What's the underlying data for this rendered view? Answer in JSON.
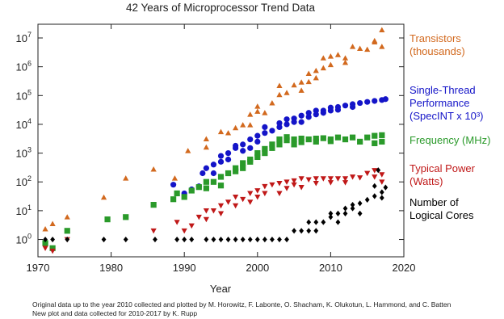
{
  "chart_data": {
    "type": "scatter",
    "title": "42 Years of Microprocessor Trend Data",
    "x_label": "Year",
    "notes": [
      "Original data up to the year 2010 collected and plotted by M. Horowitz, F. Labonte, O. Shacham, K. Olukotun, L. Hammond, and C. Batten",
      "New plot and data collected for 2010-2017 by K. Rupp"
    ],
    "xlim": [
      1970,
      2020
    ],
    "xticks": [
      1970,
      1980,
      1990,
      2000,
      2010,
      2020
    ],
    "ylim": [
      0.25,
      30000000
    ],
    "log_y": true,
    "yticks": [
      {
        "value": 1,
        "label": "10",
        "exponent": "0"
      },
      {
        "value": 10,
        "label": "10",
        "exponent": "1"
      },
      {
        "value": 100,
        "label": "10",
        "exponent": "2"
      },
      {
        "value": 1000,
        "label": "10",
        "exponent": "3"
      },
      {
        "value": 10000,
        "label": "10",
        "exponent": "4"
      },
      {
        "value": 100000,
        "label": "10",
        "exponent": "5"
      },
      {
        "value": 1000000,
        "label": "10",
        "exponent": "6"
      },
      {
        "value": 10000000,
        "label": "10",
        "exponent": "7"
      }
    ],
    "series": [
      {
        "name": "Transistors\n(thousands)",
        "color": "#d2691e",
        "marker": "triangle-up",
        "x": [
          1971,
          1972,
          1974,
          1979,
          1982,
          1985.8,
          1988.7,
          1990.5,
          1993,
          1993,
          1995,
          1996,
          1997,
          1998,
          1999,
          1999,
          2000,
          2000,
          2001,
          2002,
          2003,
          2003,
          2004,
          2005,
          2006,
          2006,
          2007,
          2007,
          2008,
          2008,
          2009,
          2009,
          2010,
          2010,
          2011,
          2012,
          2012,
          2013,
          2014,
          2015,
          2016,
          2016,
          2017,
          2017
        ],
        "values": [
          2.3,
          3.5,
          6,
          29,
          134,
          275,
          134,
          1200,
          3100,
          1600,
          5500,
          5000,
          7500,
          9500,
          22000,
          9500,
          42000,
          28000,
          25000,
          55000,
          220000,
          106000,
          125000,
          230000,
          290000,
          150000,
          580000,
          300000,
          730000,
          410000,
          900000,
          2000000,
          1170000,
          2300000,
          2600000,
          1400000,
          2000000,
          5000000,
          4300000,
          4000000,
          7200000,
          8000000,
          19000000,
          5000000
        ]
      },
      {
        "name": "Single-Thread\nPerformance\n(SpecINT x 10³)",
        "color": "#1414c8",
        "marker": "circle",
        "x": [
          1988.5,
          1990,
          1991,
          1992,
          1992.5,
          1993,
          1994,
          1994,
          1995,
          1995,
          1996,
          1996,
          1997,
          1997,
          1998,
          1998,
          1999,
          1999,
          2000,
          2000,
          2001,
          2001,
          2002,
          2003,
          2003,
          2004,
          2004,
          2005,
          2005,
          2006,
          2006,
          2007,
          2007,
          2008,
          2008,
          2009,
          2009,
          2010,
          2010,
          2011,
          2011,
          2012,
          2013,
          2013,
          2014,
          2015,
          2016,
          2017,
          2017.5
        ],
        "values": [
          80,
          40,
          55,
          70,
          200,
          300,
          400,
          200,
          500,
          800,
          1000,
          600,
          1500,
          1800,
          2000,
          1200,
          3000,
          1500,
          4000,
          2500,
          5000,
          8000,
          6000,
          8000,
          11000,
          10000,
          15000,
          12000,
          16000,
          20000,
          12000,
          25000,
          18000,
          30000,
          22000,
          30000,
          25000,
          38000,
          30000,
          40000,
          32000,
          45000,
          50000,
          40000,
          55000,
          60000,
          65000,
          70000,
          75000
        ]
      },
      {
        "name": "Frequency (MHz)",
        "color": "#2a9a2a",
        "marker": "square",
        "x": [
          1971,
          1972,
          1974,
          1979.5,
          1982,
          1985.8,
          1988.5,
          1989,
          1990,
          1991,
          1992,
          1993,
          1993,
          1994,
          1995,
          1995,
          1996,
          1997,
          1997,
          1998,
          1998,
          1999,
          1999,
          2000,
          2000,
          2001,
          2001,
          2002,
          2002,
          2003,
          2003,
          2004,
          2004,
          2005,
          2005,
          2006,
          2006,
          2007,
          2008,
          2008,
          2009,
          2010,
          2010,
          2011,
          2012,
          2013,
          2014,
          2015,
          2016,
          2016,
          2017,
          2017
        ],
        "values": [
          0.75,
          0.5,
          2,
          5,
          6,
          16,
          25,
          40,
          30,
          50,
          66,
          100,
          60,
          100,
          150,
          75,
          200,
          233,
          300,
          450,
          300,
          500,
          600,
          1000,
          733,
          1400,
          1000,
          2000,
          1500,
          3000,
          2000,
          3600,
          2800,
          3000,
          2000,
          2400,
          3200,
          3000,
          3200,
          2500,
          3300,
          3000,
          2600,
          3500,
          3000,
          3500,
          2500,
          3500,
          4000,
          2200,
          2500,
          4200
        ]
      },
      {
        "name": "Typical Power\n(Watts)",
        "color": "#c01818",
        "marker": "triangle-down",
        "x": [
          1971,
          1972,
          1974,
          1985.8,
          1989,
          1990,
          1991,
          1992,
          1993,
          1993,
          1994,
          1995,
          1995,
          1996,
          1997,
          1997,
          1998,
          1999,
          1999,
          2000,
          2000,
          2001,
          2001,
          2002,
          2003,
          2003,
          2004,
          2004,
          2005,
          2005,
          2006,
          2006,
          2007,
          2008,
          2008,
          2009,
          2010,
          2010,
          2011,
          2012,
          2012,
          2013,
          2014,
          2015,
          2016,
          2016,
          2017,
          2017
        ],
        "values": [
          0.5,
          0.4,
          1,
          2,
          4,
          2,
          3,
          6,
          10,
          5,
          10,
          15,
          8,
          20,
          30,
          15,
          25,
          40,
          20,
          50,
          30,
          70,
          40,
          80,
          90,
          40,
          100,
          60,
          110,
          80,
          130,
          65,
          120,
          130,
          90,
          130,
          130,
          95,
          130,
          95,
          130,
          150,
          140,
          200,
          250,
          150,
          180,
          100
        ]
      },
      {
        "name": "Number of\nLogical Cores",
        "color": "#000000",
        "marker": "diamond",
        "x": [
          1971,
          1972,
          1974,
          1979,
          1982,
          1986,
          1989,
          1990,
          1991,
          1993,
          1994,
          1995,
          1996,
          1997,
          1998,
          1999,
          2000,
          2001,
          2002,
          2003,
          2004,
          2005,
          2006,
          2007,
          2007,
          2008,
          2008,
          2009,
          2010,
          2010,
          2011,
          2011,
          2012,
          2012,
          2013,
          2013,
          2014,
          2014,
          2015,
          2016,
          2016,
          2016.5,
          2017,
          2017,
          2017.5
        ],
        "values": [
          1,
          1,
          1,
          1,
          1,
          1,
          1,
          1,
          1,
          1,
          1,
          1,
          1,
          1,
          1,
          1,
          1,
          1,
          1,
          1,
          1,
          2,
          2,
          2,
          4,
          4,
          2,
          4,
          6,
          8,
          8,
          4,
          12,
          8,
          12,
          16,
          18,
          8,
          24,
          32,
          72,
          256,
          28,
          44,
          64
        ]
      }
    ]
  }
}
